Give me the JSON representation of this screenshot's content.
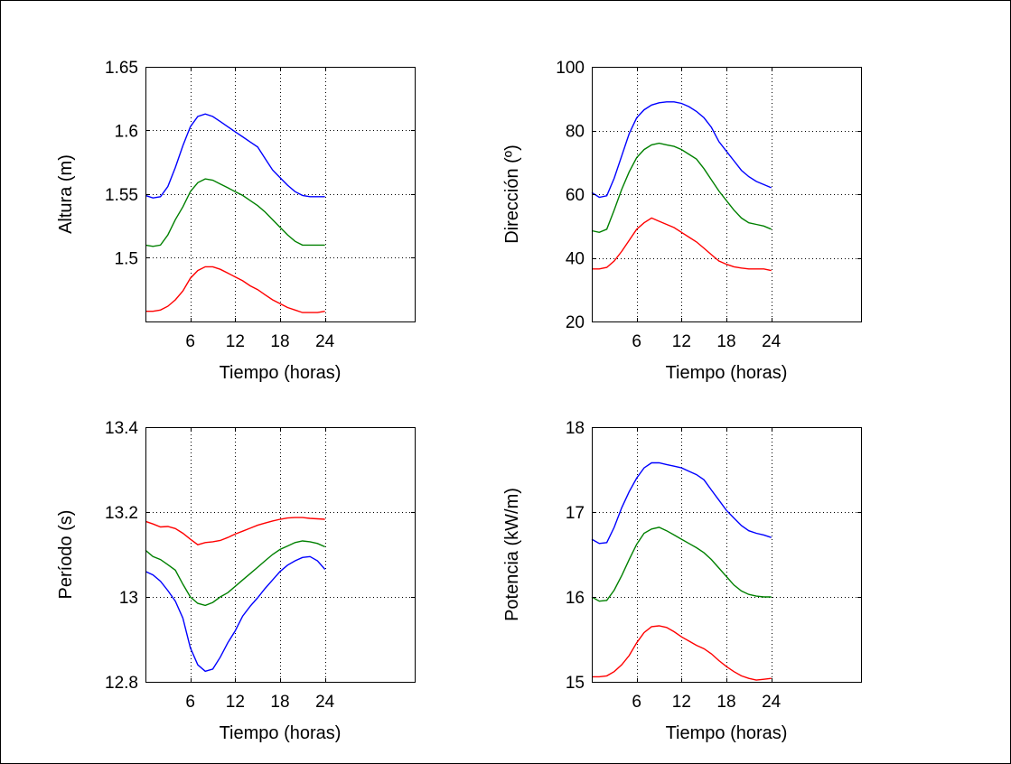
{
  "chart_data": [
    {
      "type": "line",
      "xlabel": "Tiempo (horas)",
      "ylabel": "Altura (m)",
      "xlim": [
        0,
        36
      ],
      "ylim": [
        1.45,
        1.65
      ],
      "xticks": [
        6,
        12,
        18,
        24
      ],
      "yticks": [
        1.5,
        1.55,
        1.6,
        1.65
      ],
      "xtick_labels": [
        "6",
        "12",
        "18",
        "24"
      ],
      "ytick_labels": [
        "1.5",
        "1.55",
        "1.6",
        "1.65"
      ],
      "grid": true,
      "x": [
        0,
        1,
        2,
        3,
        4,
        5,
        6,
        7,
        8,
        9,
        10,
        11,
        12,
        13,
        14,
        15,
        16,
        17,
        18,
        19,
        20,
        21,
        22,
        23,
        24
      ],
      "series": [
        {
          "color": "#0000ff",
          "values": [
            1.549,
            1.547,
            1.548,
            1.556,
            1.571,
            1.588,
            1.603,
            1.611,
            1.613,
            1.611,
            1.607,
            1.603,
            1.599,
            1.595,
            1.591,
            1.587,
            1.578,
            1.569,
            1.563,
            1.557,
            1.552,
            1.549,
            1.548,
            1.548,
            1.548
          ]
        },
        {
          "color": "#008000",
          "values": [
            1.51,
            1.509,
            1.51,
            1.518,
            1.53,
            1.54,
            1.552,
            1.559,
            1.562,
            1.561,
            1.558,
            1.555,
            1.552,
            1.549,
            1.545,
            1.541,
            1.536,
            1.53,
            1.524,
            1.518,
            1.513,
            1.51,
            1.51,
            1.51,
            1.51
          ]
        },
        {
          "color": "#ff0000",
          "values": [
            1.458,
            1.458,
            1.459,
            1.462,
            1.467,
            1.474,
            1.484,
            1.49,
            1.493,
            1.493,
            1.491,
            1.488,
            1.485,
            1.482,
            1.478,
            1.475,
            1.471,
            1.467,
            1.464,
            1.461,
            1.459,
            1.457,
            1.457,
            1.457,
            1.458
          ]
        }
      ]
    },
    {
      "type": "line",
      "xlabel": "Tiempo (horas)",
      "ylabel": "Dirección (º)",
      "xlim": [
        0,
        36
      ],
      "ylim": [
        20,
        100
      ],
      "xticks": [
        6,
        12,
        18,
        24
      ],
      "yticks": [
        20,
        40,
        60,
        80,
        100
      ],
      "xtick_labels": [
        "6",
        "12",
        "18",
        "24"
      ],
      "ytick_labels": [
        "20",
        "40",
        "60",
        "80",
        "100"
      ],
      "grid": true,
      "x": [
        0,
        1,
        2,
        3,
        4,
        5,
        6,
        7,
        8,
        9,
        10,
        11,
        12,
        13,
        14,
        15,
        16,
        17,
        18,
        19,
        20,
        21,
        22,
        23,
        24
      ],
      "series": [
        {
          "color": "#0000ff",
          "values": [
            60.5,
            59.0,
            59.5,
            65.0,
            72.0,
            79.0,
            84.0,
            86.5,
            88.0,
            88.7,
            89.0,
            89.0,
            88.5,
            87.5,
            86.0,
            84.0,
            81.0,
            76.5,
            73.5,
            70.5,
            67.5,
            65.5,
            64.0,
            63.0,
            62.0
          ]
        },
        {
          "color": "#008000",
          "values": [
            48.5,
            48.0,
            49.0,
            55.0,
            61.5,
            67.0,
            71.5,
            74.0,
            75.5,
            76.0,
            75.5,
            75.0,
            74.0,
            72.5,
            71.0,
            68.0,
            64.5,
            61.0,
            58.0,
            55.0,
            52.5,
            51.0,
            50.5,
            50.0,
            49.0
          ]
        },
        {
          "color": "#ff0000",
          "values": [
            36.5,
            36.5,
            37.0,
            39.0,
            42.0,
            45.5,
            49.0,
            51.0,
            52.5,
            51.5,
            50.5,
            49.5,
            48.0,
            46.5,
            45.0,
            43.0,
            41.0,
            39.0,
            38.0,
            37.2,
            36.8,
            36.5,
            36.5,
            36.5,
            36.0
          ]
        }
      ]
    },
    {
      "type": "line",
      "xlabel": "Tiempo (horas)",
      "ylabel": "Período (s)",
      "xlim": [
        0,
        36
      ],
      "ylim": [
        12.8,
        13.4
      ],
      "xticks": [
        6,
        12,
        18,
        24
      ],
      "yticks": [
        12.8,
        13.0,
        13.2,
        13.4
      ],
      "xtick_labels": [
        "6",
        "12",
        "18",
        "24"
      ],
      "ytick_labels": [
        "12.8",
        "13",
        "13.2",
        "13.4"
      ],
      "grid": true,
      "x": [
        0,
        1,
        2,
        3,
        4,
        5,
        6,
        7,
        8,
        9,
        10,
        11,
        12,
        13,
        14,
        15,
        16,
        17,
        18,
        19,
        20,
        21,
        22,
        23,
        24
      ],
      "series": [
        {
          "color": "#ff0000",
          "values": [
            13.178,
            13.172,
            13.165,
            13.166,
            13.161,
            13.15,
            13.136,
            13.123,
            13.128,
            13.13,
            13.133,
            13.14,
            13.148,
            13.155,
            13.162,
            13.169,
            13.174,
            13.179,
            13.183,
            13.186,
            13.187,
            13.187,
            13.185,
            13.184,
            13.183
          ]
        },
        {
          "color": "#008000",
          "values": [
            13.11,
            13.095,
            13.088,
            13.076,
            13.063,
            13.03,
            13.0,
            12.985,
            12.98,
            12.987,
            13.0,
            13.01,
            13.025,
            13.04,
            13.055,
            13.07,
            13.085,
            13.1,
            13.112,
            13.12,
            13.128,
            13.132,
            13.13,
            13.126,
            13.118
          ]
        },
        {
          "color": "#0000ff",
          "values": [
            13.06,
            13.052,
            13.037,
            13.015,
            12.99,
            12.95,
            12.88,
            12.84,
            12.825,
            12.83,
            12.858,
            12.892,
            12.92,
            12.955,
            12.978,
            12.998,
            13.02,
            13.04,
            13.06,
            13.075,
            13.085,
            13.093,
            13.095,
            13.085,
            13.065
          ]
        }
      ]
    },
    {
      "type": "line",
      "xlabel": "Tiempo (horas)",
      "ylabel": "Potencia (kW/m)",
      "xlim": [
        0,
        36
      ],
      "ylim": [
        15,
        18
      ],
      "xticks": [
        6,
        12,
        18,
        24
      ],
      "yticks": [
        15,
        16,
        17,
        18
      ],
      "xtick_labels": [
        "6",
        "12",
        "18",
        "24"
      ],
      "ytick_labels": [
        "15",
        "16",
        "17",
        "18"
      ],
      "grid": true,
      "x": [
        0,
        1,
        2,
        3,
        4,
        5,
        6,
        7,
        8,
        9,
        10,
        11,
        12,
        13,
        14,
        15,
        16,
        17,
        18,
        19,
        20,
        21,
        22,
        23,
        24
      ],
      "series": [
        {
          "color": "#0000ff",
          "values": [
            16.68,
            16.63,
            16.64,
            16.82,
            17.05,
            17.24,
            17.4,
            17.52,
            17.58,
            17.58,
            17.56,
            17.54,
            17.52,
            17.48,
            17.44,
            17.38,
            17.26,
            17.14,
            17.02,
            16.93,
            16.84,
            16.78,
            16.75,
            16.73,
            16.7
          ]
        },
        {
          "color": "#008000",
          "values": [
            16.0,
            15.95,
            15.96,
            16.08,
            16.25,
            16.44,
            16.62,
            16.75,
            16.8,
            16.82,
            16.78,
            16.73,
            16.68,
            16.63,
            16.58,
            16.52,
            16.44,
            16.34,
            16.24,
            16.14,
            16.07,
            16.03,
            16.01,
            16.0,
            16.0
          ]
        },
        {
          "color": "#ff0000",
          "values": [
            15.06,
            15.06,
            15.07,
            15.12,
            15.2,
            15.31,
            15.46,
            15.58,
            15.65,
            15.66,
            15.64,
            15.59,
            15.53,
            15.48,
            15.43,
            15.39,
            15.33,
            15.25,
            15.18,
            15.12,
            15.07,
            15.04,
            15.02,
            15.03,
            15.04
          ]
        }
      ]
    }
  ]
}
